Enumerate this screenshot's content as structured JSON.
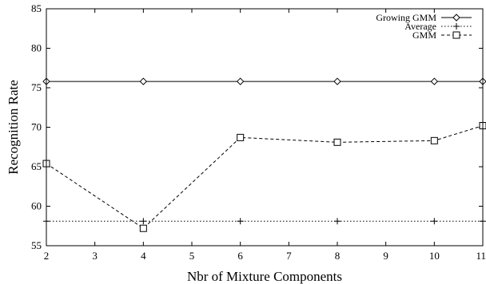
{
  "chart_data": {
    "type": "line",
    "title": "",
    "xlabel": "Nbr of Mixture Components",
    "ylabel": "Recognition Rate",
    "xlim": [
      2,
      11
    ],
    "ylim": [
      55,
      85
    ],
    "xticks": [
      "2",
      "3",
      "4",
      "5",
      "6",
      "7",
      "8",
      "9",
      "10",
      "11"
    ],
    "yticks": [
      "55",
      "60",
      "65",
      "70",
      "75",
      "80",
      "85"
    ],
    "grid": false,
    "legend": "top-right",
    "series": [
      {
        "name": "Growing GMM",
        "style": "solid",
        "marker": "diamond",
        "x": [
          2,
          4,
          6,
          8,
          10,
          11
        ],
        "y": [
          75.8,
          75.8,
          75.8,
          75.8,
          75.8,
          75.8
        ]
      },
      {
        "name": "Average",
        "style": "dotted",
        "marker": "plus",
        "x": [
          2,
          4,
          6,
          8,
          10,
          11
        ],
        "y": [
          58.1,
          58.1,
          58.1,
          58.1,
          58.1,
          58.1
        ]
      },
      {
        "name": "GMM",
        "style": "dashed",
        "marker": "square",
        "x": [
          2,
          4,
          6,
          8,
          10,
          11
        ],
        "y": [
          65.4,
          57.2,
          68.7,
          68.1,
          68.3,
          70.2
        ]
      }
    ]
  }
}
